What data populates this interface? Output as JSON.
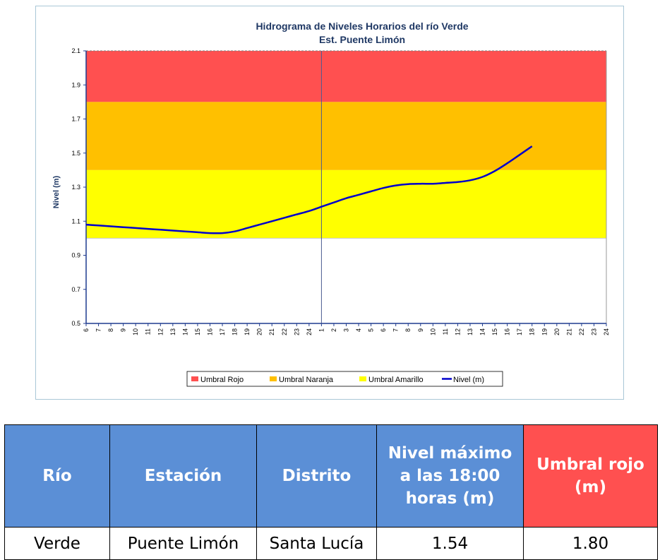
{
  "chart_data": {
    "type": "line",
    "title": "Hidrograma de Niveles Horarios del río Verde",
    "subtitle": "Est. Puente Limón",
    "ylabel": "Nivel (m)",
    "xlabel": "",
    "ylim": [
      0.5,
      2.1
    ],
    "yticks": [
      "0.5",
      "0.7",
      "0.9",
      "1.1",
      "1.3",
      "1.5",
      "1.7",
      "1.9",
      "2.1"
    ],
    "x_tick_labels": [
      "6",
      "7",
      "8",
      "9",
      "10",
      "11",
      "12",
      "13",
      "14",
      "15",
      "16",
      "17",
      "18",
      "19",
      "20",
      "21",
      "22",
      "23",
      "24",
      "1",
      "2",
      "3",
      "4",
      "5",
      "6",
      "7",
      "8",
      "9",
      "10",
      "11",
      "12",
      "13",
      "14",
      "15",
      "16",
      "17",
      "18",
      "19",
      "20",
      "21",
      "22",
      "23",
      "24"
    ],
    "thresholds": [
      {
        "name": "Umbral Rojo",
        "from": 1.8,
        "to": 2.1,
        "color": "#ff5050"
      },
      {
        "name": "Umbral Naranja",
        "from": 1.4,
        "to": 1.8,
        "color": "#ffc000"
      },
      {
        "name": "Umbral Amarillo",
        "from": 1.0,
        "to": 1.4,
        "color": "#ffff00"
      }
    ],
    "series": [
      {
        "name": "Nivel (m)",
        "color": "#0000cc",
        "x_index": [
          0,
          1,
          2,
          3,
          4,
          5,
          6,
          7,
          8,
          9,
          10,
          11,
          12,
          13,
          14,
          15,
          16,
          17,
          18,
          19,
          20,
          21,
          22,
          23,
          24,
          25,
          26,
          27,
          28,
          29,
          30,
          31,
          32,
          33,
          34,
          35,
          36
        ],
        "values": [
          1.08,
          1.075,
          1.07,
          1.065,
          1.06,
          1.055,
          1.05,
          1.045,
          1.04,
          1.035,
          1.03,
          1.03,
          1.04,
          1.06,
          1.08,
          1.1,
          1.12,
          1.14,
          1.16,
          1.185,
          1.21,
          1.235,
          1.255,
          1.275,
          1.295,
          1.31,
          1.318,
          1.32,
          1.32,
          1.325,
          1.33,
          1.34,
          1.36,
          1.395,
          1.44,
          1.49,
          1.54
        ]
      }
    ],
    "day_separator_index": 19,
    "legend": [
      "Umbral Rojo",
      "Umbral Naranja",
      "Umbral Amarillo",
      "Nivel (m)"
    ],
    "legend_position": "bottom",
    "grid": false
  },
  "table": {
    "headers": [
      "Río",
      "Estación",
      "Distrito",
      "Nivel máximo a las 18:00 horas (m)",
      "Umbral rojo (m)"
    ],
    "row": [
      "Verde",
      "Puente Limón",
      "Santa Lucía",
      "1.54",
      "1.80"
    ]
  }
}
